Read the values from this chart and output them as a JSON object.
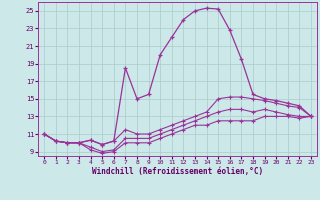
{
  "xlabel": "Windchill (Refroidissement éolien,°C)",
  "background_color": "#cce8e8",
  "grid_color": "#aacccc",
  "line_color": "#993399",
  "x_hour": [
    0,
    1,
    2,
    3,
    4,
    5,
    6,
    7,
    8,
    9,
    10,
    11,
    12,
    13,
    14,
    15,
    16,
    17,
    18,
    19,
    20,
    21,
    22,
    23
  ],
  "temp_actual": [
    11,
    10.2,
    10,
    10,
    10.3,
    9.8,
    10.2,
    18.5,
    15,
    15.5,
    20,
    22,
    24,
    25,
    25.3,
    25.2,
    22.8,
    19.5,
    15.5,
    15,
    14.8,
    14.5,
    14.2,
    13
  ],
  "windchill_line3": [
    11,
    10.2,
    10,
    10,
    10.3,
    9.8,
    10.2,
    11.5,
    11,
    11,
    11.5,
    12,
    12.5,
    13,
    13.5,
    15,
    15.2,
    15.2,
    15,
    14.8,
    14.5,
    14.2,
    14,
    13
  ],
  "windchill_line2": [
    11,
    10.2,
    10,
    10,
    9.5,
    9,
    9.2,
    10.5,
    10.5,
    10.5,
    11,
    11.5,
    12,
    12.5,
    13,
    13.5,
    13.8,
    13.8,
    13.5,
    13.8,
    13.5,
    13.2,
    13,
    13
  ],
  "windchill_line1": [
    11,
    10.2,
    10,
    10,
    9.2,
    8.8,
    9,
    10,
    10,
    10,
    10.5,
    11,
    11.5,
    12,
    12,
    12.5,
    12.5,
    12.5,
    12.5,
    13,
    13,
    13,
    12.8,
    13
  ],
  "ylim": [
    8.5,
    26
  ],
  "yticks": [
    9,
    11,
    13,
    15,
    17,
    19,
    21,
    23,
    25
  ],
  "xlim": [
    -0.5,
    23.5
  ],
  "xticks": [
    0,
    1,
    2,
    3,
    4,
    5,
    6,
    7,
    8,
    9,
    10,
    11,
    12,
    13,
    14,
    15,
    16,
    17,
    18,
    19,
    20,
    21,
    22,
    23
  ]
}
